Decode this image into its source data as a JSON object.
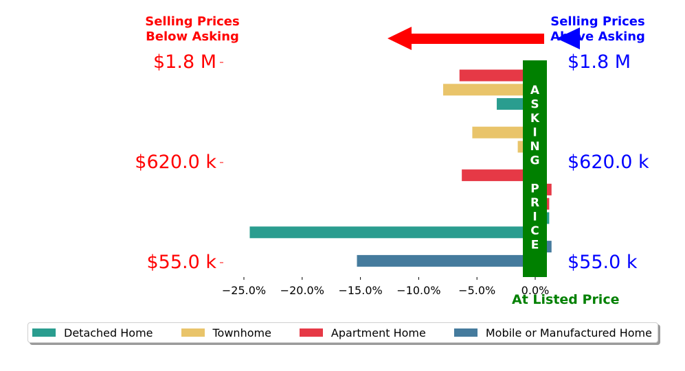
{
  "header": {
    "below_line1": "Selling Prices",
    "below_line2": "Below Asking",
    "above_line1": "Selling Prices",
    "above_line2": "Above Asking",
    "below_color": "#ff0000",
    "above_color": "#0000ff"
  },
  "asking_price_band": {
    "text": "ASKING PRICE",
    "color": "#008000"
  },
  "listed_label": "At Listed Price",
  "listed_color": "#008000",
  "left_labels": [
    "$1.8 M",
    "$620.0 k",
    "$55.0 k"
  ],
  "right_labels": [
    "$1.8 M",
    "$620.0 k",
    "$55.0 k"
  ],
  "arrow_color": "#ff0000",
  "arrow_head_color": "#0000ff",
  "legend": [
    {
      "label": "Detached Home",
      "color": "#2a9d8f"
    },
    {
      "label": "Townhome",
      "color": "#e9c46a"
    },
    {
      "label": "Apartment Home",
      "color": "#e63946"
    },
    {
      "label": "Mobile or Manufactured Home",
      "color": "#457b9d"
    }
  ],
  "chart_data": {
    "type": "bar",
    "orientation": "horizontal",
    "x_ticks": [
      "−25.0%",
      "−20.0%",
      "−15.0%",
      "−10.0%",
      "−5.0%",
      "0.0%"
    ],
    "x_tick_values": [
      -25,
      -20,
      -15,
      -10,
      -5,
      0
    ],
    "xlim": [
      -27.3,
      1.5
    ],
    "bars": [
      {
        "series": "Apartment Home",
        "value": -6.5
      },
      {
        "series": "Townhome",
        "value": -7.9
      },
      {
        "series": "Detached Home",
        "value": -3.3
      },
      {
        "series": "Detached Home",
        "value": -0.3
      },
      {
        "series": "Townhome",
        "value": -5.4
      },
      {
        "series": "Townhome",
        "value": -1.5
      },
      {
        "series": "Apartment Home",
        "value": -0.8
      },
      {
        "series": "Apartment Home",
        "value": -6.3
      },
      {
        "series": "Apartment Home",
        "value": 1.4
      },
      {
        "series": "Apartment Home",
        "value": 1.2
      },
      {
        "series": "Detached Home",
        "value": 1.2
      },
      {
        "series": "Detached Home",
        "value": -24.5
      },
      {
        "series": "Mobile or Manufactured Home",
        "value": 1.4
      },
      {
        "series": "Mobile or Manufactured Home",
        "value": -15.3
      }
    ],
    "grid": false,
    "legend_position": "bottom"
  }
}
